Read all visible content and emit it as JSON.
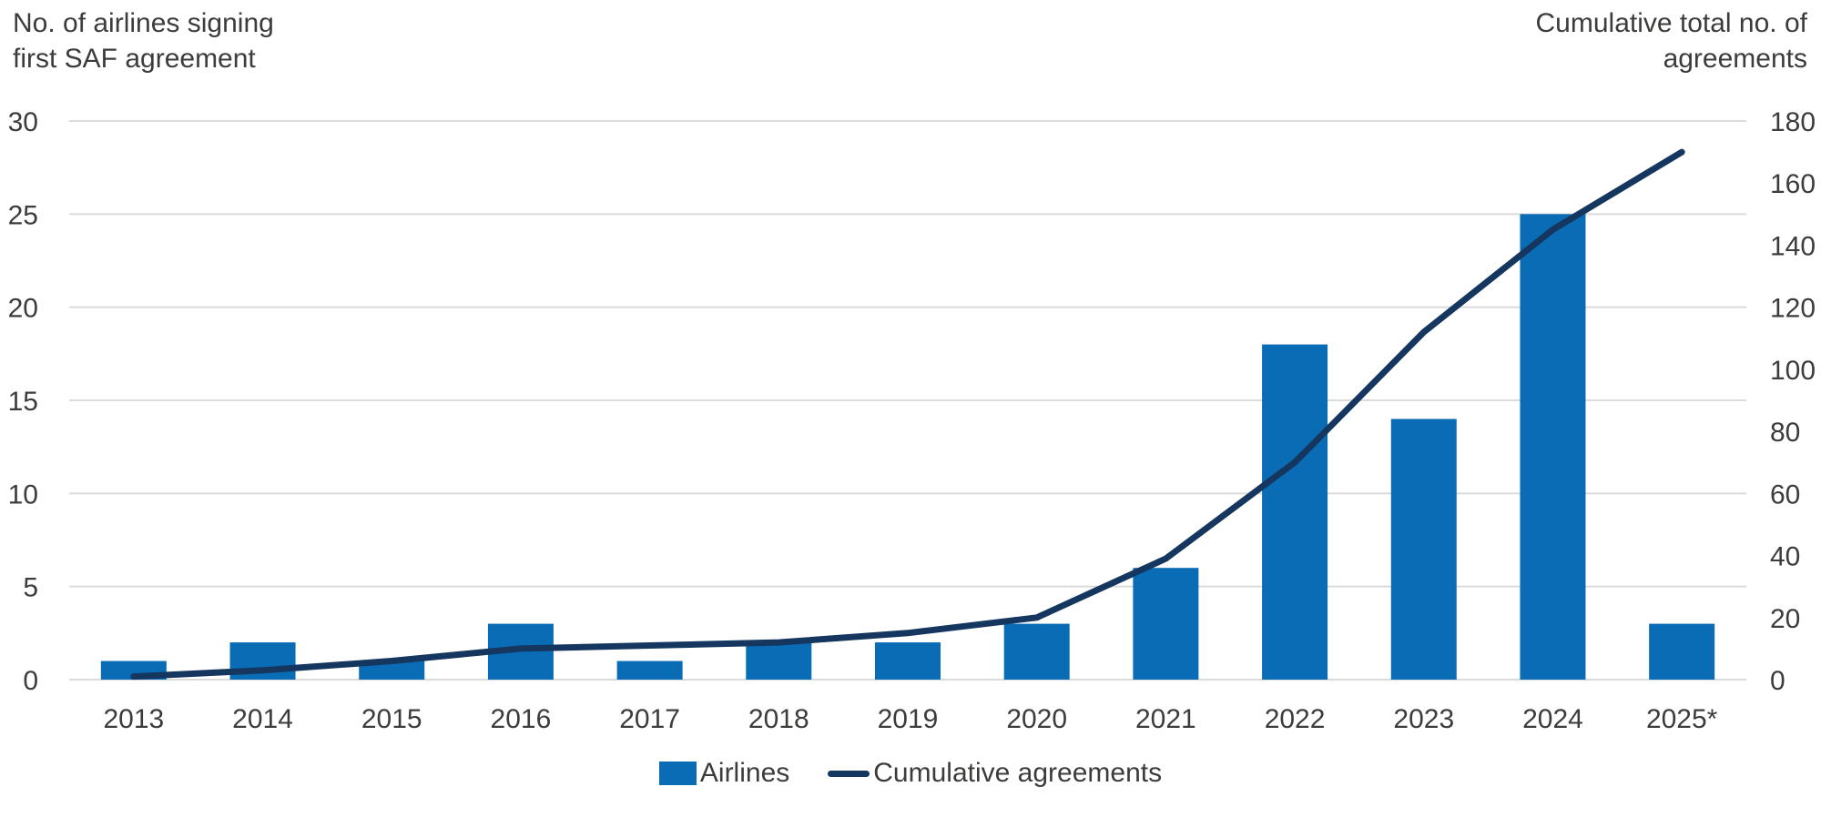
{
  "titles": {
    "left_line1": "No. of airlines signing",
    "left_line2": "first SAF agreement",
    "right_line1": "Cumulative total no. of",
    "right_line2": "agreements"
  },
  "legend": {
    "bar_label": "Airlines",
    "line_label": "Cumulative agreements"
  },
  "colors": {
    "bar": "#0A6CB5",
    "line": "#14365F",
    "grid": "#DBDBDB",
    "text": "#3C3C3B",
    "background": "#FFFFFF"
  },
  "chart_data": {
    "type": "bar+line dual-axis combo",
    "categories": [
      "2013",
      "2014",
      "2015",
      "2016",
      "2017",
      "2018",
      "2019",
      "2020",
      "2021",
      "2022",
      "2023",
      "2024",
      "2025*"
    ],
    "series": [
      {
        "name": "Airlines",
        "type": "bar",
        "axis": "left",
        "color": "#0A6CB5",
        "values": [
          1,
          2,
          1,
          3,
          1,
          2,
          2,
          3,
          6,
          18,
          14,
          25,
          3
        ]
      },
      {
        "name": "Cumulative agreements",
        "type": "line",
        "axis": "right",
        "color": "#14365F",
        "values": [
          1,
          3,
          6,
          10,
          11,
          12,
          15,
          20,
          39,
          70,
          112,
          145,
          170
        ]
      }
    ],
    "left_axis": {
      "title": "No. of airlines signing first SAF agreement",
      "range": [
        0,
        30
      ],
      "ticks": [
        0,
        5,
        10,
        15,
        20,
        25,
        30
      ]
    },
    "right_axis": {
      "title": "Cumulative total no. of agreements",
      "range": [
        0,
        180
      ],
      "ticks": [
        0,
        20,
        40,
        60,
        80,
        100,
        120,
        140,
        160,
        180
      ]
    },
    "grid": "horizontal gridlines at left-axis tick positions",
    "legend_position": "bottom center"
  }
}
